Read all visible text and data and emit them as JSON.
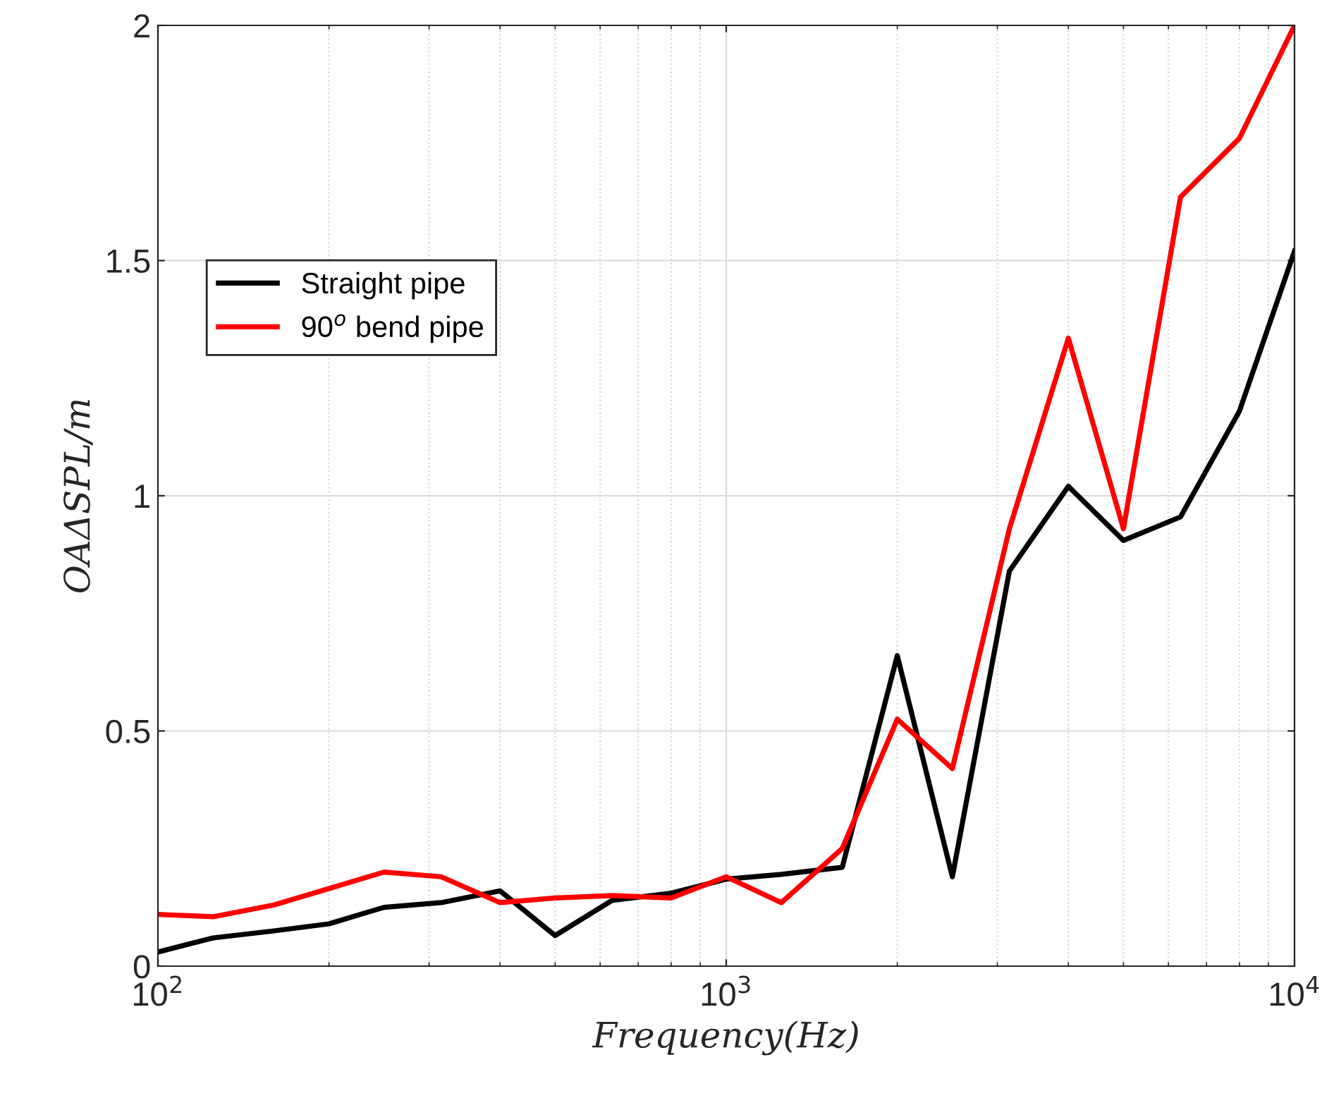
{
  "chart_data": {
    "type": "line",
    "xlabel": "Frequency(Hz)",
    "ylabel": "OAΔSPL/m",
    "x": [
      100,
      125,
      160,
      200,
      250,
      315,
      400,
      500,
      630,
      800,
      1000,
      1250,
      1600,
      2000,
      2500,
      3150,
      4000,
      5000,
      6300,
      8000,
      10000
    ],
    "series": [
      {
        "name": "Straight pipe",
        "color": "#000000",
        "values": [
          0.03,
          0.06,
          0.075,
          0.09,
          0.125,
          0.135,
          0.16,
          0.065,
          0.14,
          0.155,
          0.185,
          0.195,
          0.21,
          0.66,
          0.19,
          0.84,
          1.02,
          0.905,
          0.955,
          1.18,
          1.52
        ]
      },
      {
        "name": "90$^{o}$ bend pipe",
        "color": "#ff0000",
        "values": [
          0.11,
          0.105,
          0.13,
          0.165,
          0.2,
          0.19,
          0.135,
          0.145,
          0.15,
          0.145,
          0.19,
          0.135,
          0.25,
          0.525,
          0.42,
          0.93,
          1.335,
          0.93,
          1.635,
          1.76,
          2.0
        ]
      }
    ],
    "log": "x",
    "xlim": [
      100,
      10000
    ],
    "xticks": [
      {
        "value": 100,
        "label": "10$^{2}$"
      },
      {
        "value": 1000,
        "label": "10$^{3}$"
      },
      {
        "value": 10000,
        "label": "10$^{4}$"
      }
    ],
    "ylim": [
      0,
      2
    ],
    "yticks": [
      0,
      0.5,
      1,
      1.5,
      2
    ],
    "grid": true,
    "legend": "left",
    "marker": "none",
    "line_style": "solid"
  }
}
